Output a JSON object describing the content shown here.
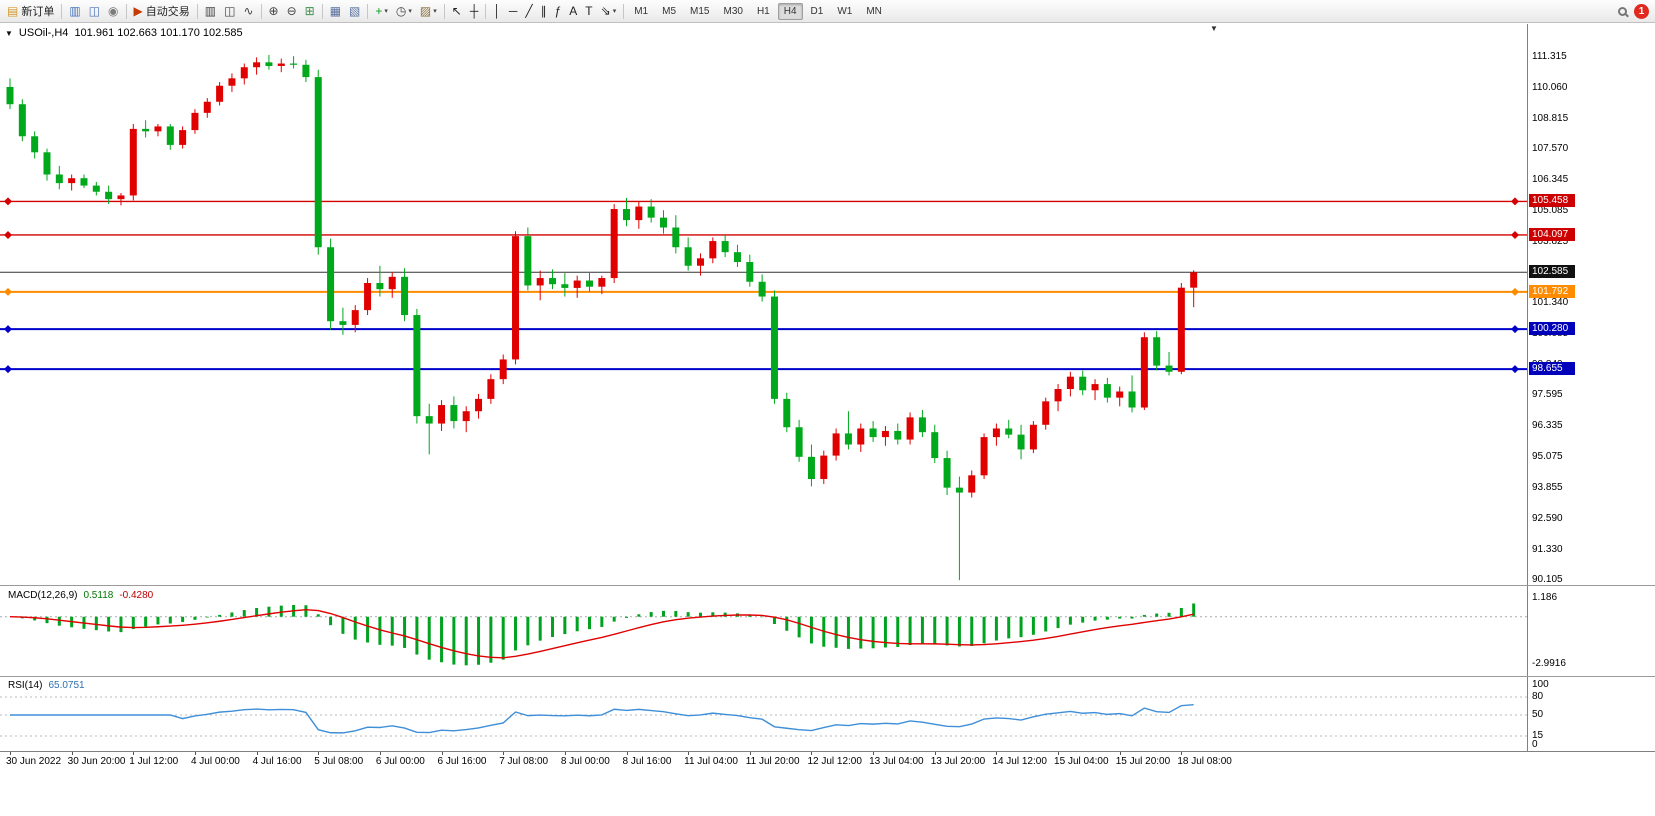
{
  "toolbar": {
    "groups": [
      {
        "items": [
          {
            "name": "new-order-button",
            "glyph": "▤",
            "color": "#d19b2f",
            "label": "新订单"
          }
        ]
      },
      {
        "items": [
          {
            "name": "market-watch-button",
            "glyph": "▥",
            "color": "#4a72b8"
          },
          {
            "name": "data-window-button",
            "glyph": "◫",
            "color": "#4a72b8"
          },
          {
            "name": "signals-button",
            "glyph": "◉",
            "color": "#7b7b7b"
          }
        ]
      },
      {
        "items": [
          {
            "name": "auto-trading-button",
            "glyph": "▶",
            "color": "#c43c00",
            "label": "自动交易"
          }
        ]
      },
      {
        "items": [
          {
            "name": "bars-type-button",
            "glyph": "▥",
            "color": "#444444"
          },
          {
            "name": "candles-type-button",
            "glyph": "◫",
            "color": "#444444"
          },
          {
            "name": "line-type-button",
            "glyph": "∿",
            "color": "#444444"
          }
        ]
      },
      {
        "items": [
          {
            "name": "zoom-in-button",
            "glyph": "⊕",
            "color": "#444444"
          },
          {
            "name": "zoom-out-button",
            "glyph": "⊖",
            "color": "#444444"
          },
          {
            "name": "tile-windows-button",
            "glyph": "⊞",
            "color": "#3f8f4f"
          }
        ]
      },
      {
        "items": [
          {
            "name": "arrange-charts-button",
            "glyph": "▦",
            "color": "#5a6f9e"
          },
          {
            "name": "cascade-charts-button",
            "glyph": "▧",
            "color": "#5a6f9e"
          }
        ]
      },
      {
        "items": [
          {
            "name": "add-indicator-button",
            "glyph": "+",
            "color": "#0f9d20",
            "dropdown": true
          },
          {
            "name": "periods-button",
            "glyph": "◷",
            "color": "#444444",
            "dropdown": true
          },
          {
            "name": "templates-button",
            "glyph": "▨",
            "color": "#8a6d3b",
            "dropdown": true
          }
        ]
      },
      {
        "items": [
          {
            "name": "cursor-button",
            "glyph": "↖",
            "color": "#222222"
          },
          {
            "name": "crosshair-button",
            "glyph": "┼",
            "color": "#222222"
          }
        ]
      },
      {
        "items": [
          {
            "name": "vertical-line-button",
            "glyph": "│",
            "color": "#222222"
          },
          {
            "name": "horizontal-line-button",
            "glyph": "─",
            "color": "#222222"
          },
          {
            "name": "trendline-button",
            "glyph": "╱",
            "color": "#222222"
          },
          {
            "name": "channel-button",
            "glyph": "∥",
            "color": "#222222"
          },
          {
            "name": "fibonacci-button",
            "glyph": "ƒ",
            "color": "#222222"
          },
          {
            "name": "text-button",
            "glyph": "A",
            "color": "#222222"
          },
          {
            "name": "label-button",
            "glyph": "T",
            "color": "#222222"
          },
          {
            "name": "arrows-button",
            "glyph": "⇘",
            "color": "#222222",
            "dropdown": true
          }
        ]
      }
    ],
    "timeframes": [
      "M1",
      "M5",
      "M15",
      "M30",
      "H1",
      "H4",
      "D1",
      "W1",
      "MN"
    ],
    "active_timeframe": "H4",
    "notification_count": "1"
  },
  "chart": {
    "symbol_period": "USOil-,H4",
    "ohlc_text": "101.961 102.663 101.170 102.585",
    "current_price": "102.585",
    "axis_labels": [
      "111.315",
      "110.060",
      "108.815",
      "107.570",
      "106.345",
      "105.085",
      "103.825",
      "101.340",
      "100.085",
      "98.840",
      "97.595",
      "96.335",
      "95.075",
      "93.855",
      "92.590",
      "91.330",
      "90.105"
    ],
    "badges": [
      {
        "text": "105.458",
        "color": "#cc0000"
      },
      {
        "text": "104.097",
        "color": "#cc0000"
      },
      {
        "text": "102.585",
        "color": "#111111"
      },
      {
        "text": "101.792",
        "color": "#ff8c00"
      },
      {
        "text": "100.280",
        "color": "#0000bb"
      },
      {
        "text": "98.655",
        "color": "#0000bb"
      }
    ],
    "time_labels": [
      "30 Jun 2022",
      "30 Jun 20:00",
      "1 Jul 12:00",
      "4 Jul 00:00",
      "4 Jul 16:00",
      "5 Jul 08:00",
      "6 Jul 00:00",
      "6 Jul 16:00",
      "7 Jul 08:00",
      "8 Jul 00:00",
      "8 Jul 16:00",
      "11 Jul 04:00",
      "11 Jul 20:00",
      "12 Jul 12:00",
      "13 Jul 04:00",
      "13 Jul 20:00",
      "14 Jul 12:00",
      "15 Jul 04:00",
      "15 Jul 20:00",
      "18 Jul 08:00"
    ]
  },
  "macd": {
    "name_label": "MACD(12,26,9)",
    "main_value": "0.5118",
    "signal_value": "-0.4280",
    "scale": [
      {
        "text": "1.186",
        "value": 1.186
      },
      {
        "text": "-2.9916",
        "value": -2.9916
      }
    ]
  },
  "rsi": {
    "name_label": "RSI(14)",
    "value": "65.0751",
    "scale": [
      {
        "text": "100",
        "value": 100
      },
      {
        "text": "80",
        "value": 80
      },
      {
        "text": "50",
        "value": 50
      },
      {
        "text": "15",
        "value": 15
      },
      {
        "text": "0",
        "value": 0
      }
    ],
    "levels": [
      80,
      50,
      15
    ]
  },
  "chart_data": {
    "type": "candlestick",
    "symbol": "USOil-",
    "timeframe": "H4",
    "ylim": [
      90.105,
      111.315
    ],
    "up_color": "#e00000",
    "down_color": "#00a81c",
    "hlines": [
      {
        "price": 105.458,
        "color": "#d40000",
        "width": 1.4
      },
      {
        "price": 104.097,
        "color": "#d40000",
        "width": 1.4
      },
      {
        "price": 101.792,
        "color": "#ff8c00",
        "width": 2
      },
      {
        "price": 100.28,
        "color": "#0000cc",
        "width": 2
      },
      {
        "price": 98.655,
        "color": "#0000cc",
        "width": 2
      }
    ],
    "indicators": [
      {
        "type": "MACD",
        "params": [
          12,
          26,
          9
        ],
        "main": 0.5118,
        "signal": -0.428
      },
      {
        "type": "RSI",
        "params": [
          14
        ],
        "value": 65.0751
      }
    ],
    "candles": [
      [
        110.1,
        110.45,
        109.2,
        109.4
      ],
      [
        109.4,
        109.6,
        107.9,
        108.1
      ],
      [
        108.1,
        108.3,
        107.2,
        107.45
      ],
      [
        107.45,
        107.6,
        106.3,
        106.55
      ],
      [
        106.55,
        106.9,
        105.95,
        106.2
      ],
      [
        106.2,
        106.55,
        105.9,
        106.4
      ],
      [
        106.4,
        106.55,
        106.0,
        106.1
      ],
      [
        106.1,
        106.25,
        105.7,
        105.85
      ],
      [
        105.85,
        106.1,
        105.35,
        105.55
      ],
      [
        105.55,
        105.8,
        105.3,
        105.7
      ],
      [
        105.7,
        108.6,
        105.5,
        108.4
      ],
      [
        108.4,
        108.75,
        108.05,
        108.3
      ],
      [
        108.3,
        108.6,
        108.1,
        108.5
      ],
      [
        108.5,
        108.6,
        107.55,
        107.75
      ],
      [
        107.75,
        108.5,
        107.6,
        108.35
      ],
      [
        108.35,
        109.2,
        108.2,
        109.05
      ],
      [
        109.05,
        109.65,
        108.85,
        109.5
      ],
      [
        109.5,
        110.3,
        109.35,
        110.15
      ],
      [
        110.15,
        110.65,
        109.9,
        110.45
      ],
      [
        110.45,
        111.05,
        110.2,
        110.9
      ],
      [
        110.9,
        111.3,
        110.6,
        111.1
      ],
      [
        111.1,
        111.4,
        110.8,
        110.95
      ],
      [
        110.95,
        111.25,
        110.7,
        111.05
      ],
      [
        111.05,
        111.35,
        110.85,
        111.0
      ],
      [
        111.0,
        111.2,
        110.3,
        110.5
      ],
      [
        110.5,
        110.8,
        103.3,
        103.6
      ],
      [
        103.6,
        103.95,
        100.25,
        100.6
      ],
      [
        100.6,
        101.15,
        100.05,
        100.45
      ],
      [
        100.45,
        101.25,
        100.15,
        101.05
      ],
      [
        101.05,
        102.35,
        100.85,
        102.15
      ],
      [
        102.15,
        102.85,
        101.6,
        101.9
      ],
      [
        101.9,
        102.6,
        101.55,
        102.4
      ],
      [
        102.4,
        102.75,
        100.6,
        100.85
      ],
      [
        100.85,
        101.1,
        96.45,
        96.75
      ],
      [
        96.75,
        97.25,
        95.2,
        96.45
      ],
      [
        96.45,
        97.4,
        96.15,
        97.2
      ],
      [
        97.2,
        97.55,
        96.25,
        96.55
      ],
      [
        96.55,
        97.15,
        96.1,
        96.95
      ],
      [
        96.95,
        97.65,
        96.65,
        97.45
      ],
      [
        97.45,
        98.45,
        97.25,
        98.25
      ],
      [
        98.25,
        99.25,
        98.05,
        99.05
      ],
      [
        99.05,
        104.25,
        98.85,
        104.05
      ],
      [
        104.05,
        104.4,
        101.85,
        102.05
      ],
      [
        102.05,
        102.65,
        101.45,
        102.35
      ],
      [
        102.35,
        102.7,
        101.9,
        102.1
      ],
      [
        102.1,
        102.55,
        101.6,
        101.95
      ],
      [
        101.95,
        102.45,
        101.55,
        102.25
      ],
      [
        102.25,
        102.6,
        101.8,
        102.0
      ],
      [
        102.0,
        102.45,
        101.7,
        102.35
      ],
      [
        102.35,
        105.35,
        102.15,
        105.15
      ],
      [
        105.15,
        105.6,
        104.45,
        104.7
      ],
      [
        104.7,
        105.45,
        104.35,
        105.25
      ],
      [
        105.25,
        105.55,
        104.6,
        104.8
      ],
      [
        104.8,
        105.1,
        104.15,
        104.4
      ],
      [
        104.4,
        104.9,
        103.35,
        103.6
      ],
      [
        103.6,
        104.0,
        102.65,
        102.85
      ],
      [
        102.85,
        103.35,
        102.45,
        103.15
      ],
      [
        103.15,
        104.0,
        102.95,
        103.85
      ],
      [
        103.85,
        104.1,
        103.2,
        103.4
      ],
      [
        103.4,
        103.7,
        102.8,
        103.0
      ],
      [
        103.0,
        103.3,
        102.0,
        102.2
      ],
      [
        102.2,
        102.5,
        101.4,
        101.6
      ],
      [
        101.6,
        101.85,
        97.25,
        97.45
      ],
      [
        97.45,
        97.7,
        96.1,
        96.3
      ],
      [
        96.3,
        96.6,
        94.9,
        95.1
      ],
      [
        95.1,
        95.6,
        93.9,
        94.2
      ],
      [
        94.2,
        95.35,
        94.0,
        95.15
      ],
      [
        95.15,
        96.25,
        94.95,
        96.05
      ],
      [
        96.05,
        96.95,
        95.4,
        95.6
      ],
      [
        95.6,
        96.45,
        95.3,
        96.25
      ],
      [
        96.25,
        96.55,
        95.7,
        95.9
      ],
      [
        95.9,
        96.35,
        95.55,
        96.15
      ],
      [
        96.15,
        96.45,
        95.6,
        95.8
      ],
      [
        95.8,
        96.9,
        95.6,
        96.7
      ],
      [
        96.7,
        97.0,
        95.9,
        96.1
      ],
      [
        96.1,
        96.4,
        94.85,
        95.05
      ],
      [
        95.05,
        95.35,
        93.55,
        93.85
      ],
      [
        93.85,
        94.3,
        90.1,
        93.65
      ],
      [
        93.65,
        94.55,
        93.45,
        94.35
      ],
      [
        94.35,
        96.05,
        94.2,
        95.9
      ],
      [
        95.9,
        96.45,
        95.55,
        96.25
      ],
      [
        96.25,
        96.6,
        95.85,
        96.0
      ],
      [
        96.0,
        96.4,
        95.0,
        95.4
      ],
      [
        95.4,
        96.55,
        95.25,
        96.4
      ],
      [
        96.4,
        97.5,
        96.2,
        97.35
      ],
      [
        97.35,
        98.05,
        96.95,
        97.85
      ],
      [
        97.85,
        98.55,
        97.55,
        98.35
      ],
      [
        98.35,
        98.6,
        97.6,
        97.8
      ],
      [
        97.8,
        98.25,
        97.4,
        98.05
      ],
      [
        98.05,
        98.3,
        97.3,
        97.5
      ],
      [
        97.5,
        97.95,
        97.15,
        97.75
      ],
      [
        97.75,
        98.4,
        96.9,
        97.1
      ],
      [
        97.1,
        100.15,
        97.0,
        99.95
      ],
      [
        99.95,
        100.2,
        98.6,
        98.8
      ],
      [
        98.8,
        99.35,
        98.4,
        98.55
      ],
      [
        98.55,
        102.15,
        98.45,
        101.96
      ],
      [
        101.961,
        102.663,
        101.17,
        102.585
      ]
    ]
  }
}
